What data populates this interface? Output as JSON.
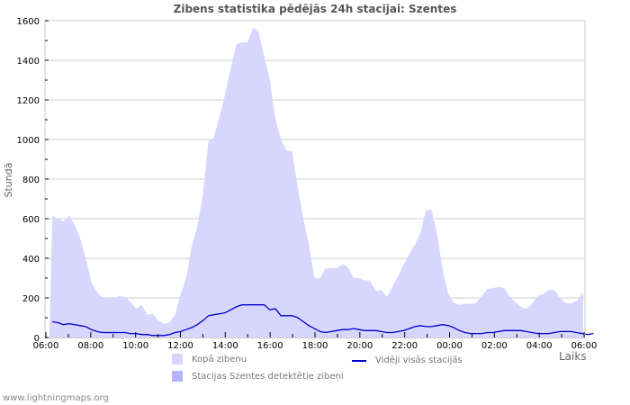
{
  "title": "Zibens statistika pēdējās 24h stacijai: Szentes",
  "footer": "www.lightningmaps.org",
  "colors": {
    "total_area": "#d6d6fe",
    "station_area": "#b4b4fa",
    "avg_line": "#0000cc",
    "grid": "#cccccc",
    "frame": "#cccccc"
  },
  "legend": {
    "total": "Kopā zibeņu",
    "station": "Stacijas Szentes detektētie zibeņi",
    "average": "Vidēji visās stacijās"
  },
  "chart_data": {
    "type": "area",
    "title": "Zibens statistika pēdējās 24h stacijai: Szentes",
    "xlabel": "Laiks",
    "ylabel": "Stundā",
    "ylim": [
      0,
      1600
    ],
    "yticks": [
      0,
      200,
      400,
      600,
      800,
      1000,
      1200,
      1400,
      1600
    ],
    "xticks": [
      "06:00",
      "08:00",
      "10:00",
      "12:00",
      "14:00",
      "16:00",
      "18:00",
      "20:00",
      "22:00",
      "00:00",
      "02:00",
      "04:00",
      "06:00"
    ],
    "grid": true,
    "legend_position": "bottom",
    "x_step_minutes": 15,
    "series": [
      {
        "name": "Kopā zibeņu",
        "type": "area",
        "values": [
          615,
          600,
          585,
          615,
          570,
          500,
          400,
          280,
          230,
          200,
          200,
          200,
          210,
          205,
          180,
          145,
          165,
          115,
          120,
          85,
          70,
          75,
          115,
          220,
          300,
          460,
          560,
          720,
          990,
          1010,
          1120,
          1230,
          1360,
          1480,
          1490,
          1490,
          1565,
          1545,
          1420,
          1300,
          1100,
          1000,
          945,
          940,
          760,
          600,
          470,
          300,
          300,
          350,
          350,
          350,
          370,
          355,
          300,
          300,
          290,
          285,
          235,
          240,
          205,
          260,
          310,
          370,
          420,
          470,
          530,
          645,
          645,
          520,
          340,
          220,
          175,
          165,
          170,
          170,
          175,
          210,
          245,
          250,
          255,
          250,
          205,
          180,
          155,
          145,
          170,
          210,
          220,
          240,
          240,
          200,
          175,
          170,
          185,
          220
        ]
      },
      {
        "name": "Stacijas Szentes detektētie zibeņi",
        "type": "area",
        "values": []
      },
      {
        "name": "Vidēji visās stacijās",
        "type": "line",
        "values": [
          80,
          75,
          65,
          70,
          65,
          60,
          55,
          40,
          30,
          25,
          25,
          25,
          25,
          25,
          20,
          20,
          15,
          15,
          10,
          10,
          10,
          15,
          25,
          30,
          40,
          50,
          65,
          85,
          110,
          115,
          120,
          125,
          140,
          155,
          165,
          165,
          165,
          165,
          165,
          140,
          145,
          110,
          110,
          110,
          100,
          80,
          60,
          45,
          30,
          25,
          30,
          35,
          40,
          40,
          45,
          40,
          35,
          35,
          35,
          30,
          25,
          25,
          30,
          35,
          45,
          55,
          60,
          55,
          55,
          60,
          65,
          60,
          50,
          35,
          25,
          20,
          20,
          20,
          25,
          25,
          30,
          35,
          35,
          35,
          35,
          30,
          25,
          20,
          20,
          20,
          25,
          30,
          30,
          30,
          25,
          20,
          15,
          20
        ]
      }
    ]
  }
}
